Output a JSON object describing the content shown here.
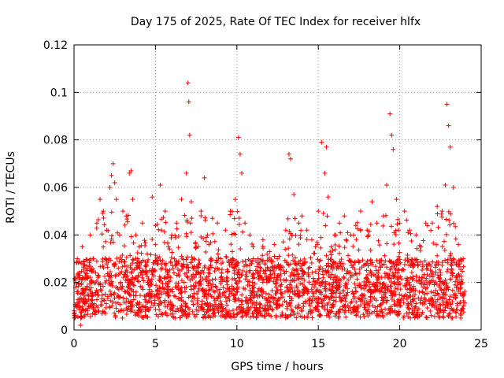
{
  "chart_data": {
    "type": "scatter",
    "title": "Day 175 of 2025, Rate Of TEC Index for receiver hlfx",
    "xlabel": "GPS time / hours",
    "ylabel": "ROTI / TECUs",
    "xlim": [
      0,
      25
    ],
    "ylim": [
      0,
      0.12
    ],
    "x_ticks": [
      0,
      5,
      10,
      15,
      20,
      25
    ],
    "x_tick_labels": [
      "0",
      "5",
      "10",
      "15",
      "20",
      "25"
    ],
    "y_ticks": [
      0,
      0.02,
      0.04,
      0.06,
      0.08,
      0.1,
      0.12
    ],
    "y_tick_labels": [
      "0",
      "0.02",
      "0.04",
      "0.06",
      "0.08",
      "0.1",
      "0.12"
    ],
    "grid": true,
    "marker": "+",
    "color": "#ff0000",
    "series": [
      {
        "name": "hlfx",
        "x": [
          0.1,
          0.2,
          0.3,
          0.4,
          0.5,
          0.6,
          0.8,
          1.0,
          1.2,
          1.4,
          1.6,
          1.8,
          2.0,
          2.2,
          2.3,
          2.4,
          2.5,
          2.6,
          2.8,
          3.0,
          3.2,
          3.4,
          3.5,
          3.6,
          3.8,
          4.0,
          4.2,
          4.5,
          4.8,
          5.0,
          5.3,
          5.6,
          5.8,
          6.0,
          6.3,
          6.6,
          6.9,
          7.0,
          7.05,
          7.1,
          7.2,
          7.5,
          7.8,
          8.0,
          8.2,
          8.5,
          8.8,
          9.0,
          9.3,
          9.6,
          9.9,
          10.1,
          10.2,
          10.3,
          10.5,
          10.8,
          11.0,
          11.3,
          11.6,
          12.0,
          12.3,
          12.6,
          13.0,
          13.2,
          13.3,
          13.5,
          13.8,
          14.0,
          14.3,
          14.6,
          15.0,
          15.2,
          15.4,
          15.5,
          15.6,
          15.8,
          16.0,
          16.3,
          16.6,
          17.0,
          17.3,
          17.6,
          18.0,
          18.3,
          18.6,
          19.0,
          19.2,
          19.4,
          19.5,
          19.6,
          19.8,
          20.0,
          20.3,
          20.6,
          21.0,
          21.3,
          21.6,
          22.0,
          22.3,
          22.6,
          22.8,
          22.9,
          23.0,
          23.1,
          23.3,
          23.6,
          23.9
        ],
        "y": [
          0.018,
          0.03,
          0.022,
          0.002,
          0.035,
          0.016,
          0.025,
          0.04,
          0.03,
          0.045,
          0.055,
          0.05,
          0.042,
          0.06,
          0.065,
          0.07,
          0.062,
          0.055,
          0.04,
          0.05,
          0.048,
          0.066,
          0.067,
          0.055,
          0.04,
          0.035,
          0.045,
          0.032,
          0.056,
          0.044,
          0.061,
          0.05,
          0.035,
          0.04,
          0.045,
          0.055,
          0.066,
          0.104,
          0.096,
          0.082,
          0.054,
          0.035,
          0.05,
          0.064,
          0.04,
          0.047,
          0.045,
          0.03,
          0.042,
          0.05,
          0.055,
          0.081,
          0.074,
          0.066,
          0.045,
          0.04,
          0.035,
          0.03,
          0.038,
          0.033,
          0.036,
          0.031,
          0.042,
          0.074,
          0.072,
          0.057,
          0.045,
          0.048,
          0.042,
          0.038,
          0.05,
          0.079,
          0.066,
          0.077,
          0.056,
          0.035,
          0.04,
          0.045,
          0.048,
          0.04,
          0.044,
          0.05,
          0.042,
          0.054,
          0.045,
          0.048,
          0.061,
          0.091,
          0.082,
          0.076,
          0.055,
          0.045,
          0.05,
          0.042,
          0.04,
          0.035,
          0.045,
          0.045,
          0.052,
          0.05,
          0.061,
          0.095,
          0.086,
          0.077,
          0.06,
          0.036,
          0.03
        ]
      }
    ],
    "baseline": {
      "description_band": "dense noise floor",
      "x_range": [
        0,
        24
      ],
      "y_floor": [
        0.005,
        0.03
      ]
    }
  }
}
